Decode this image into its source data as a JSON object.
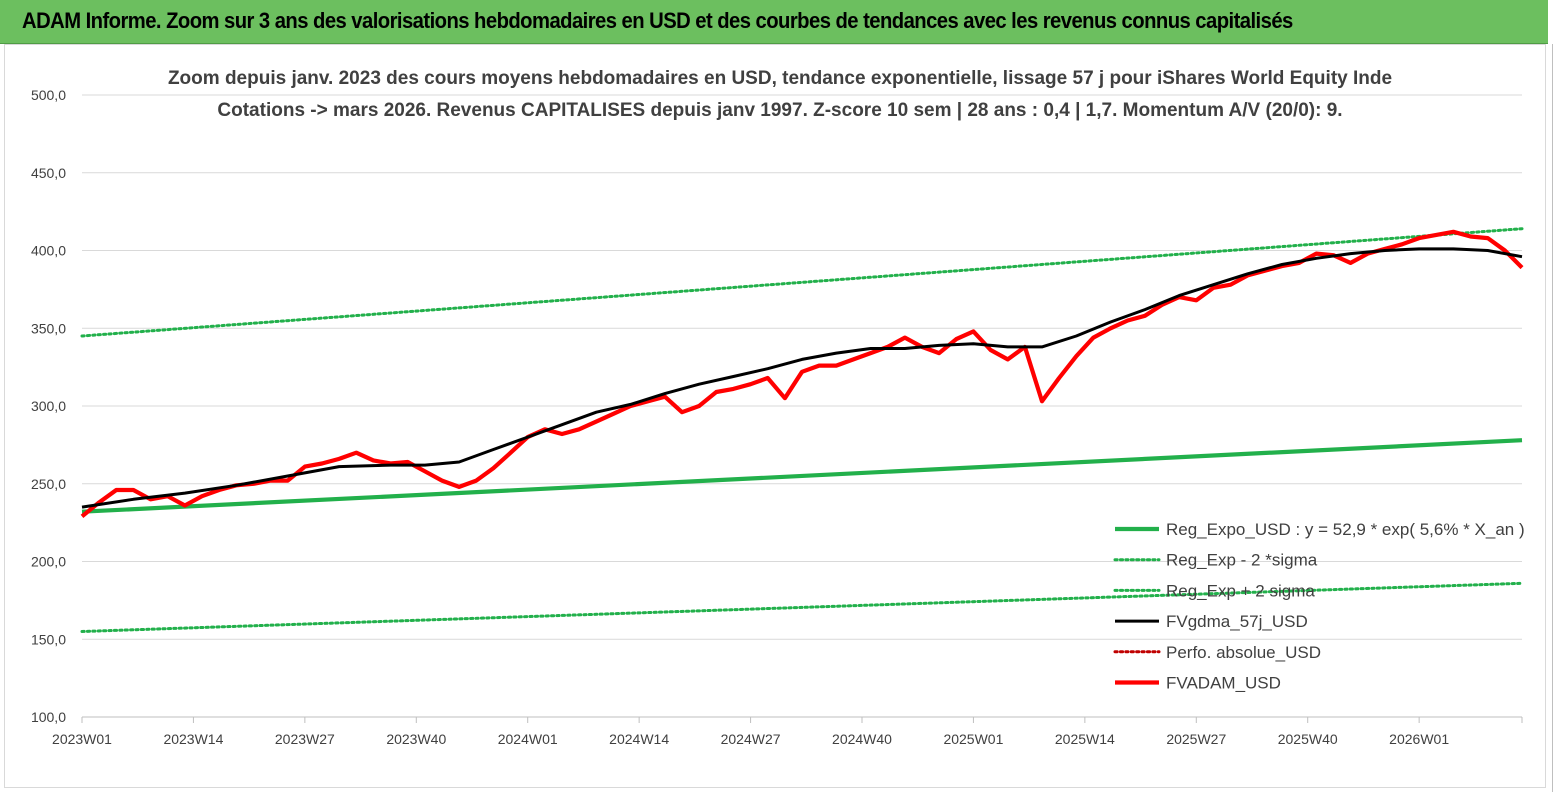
{
  "header": {
    "title": "ADAM Informe. Zoom sur 3 ans des valorisations hebdomadaires en USD et des courbes de tendances avec les revenus connus capitalisés"
  },
  "chart_data": {
    "type": "line",
    "title": "Zoom depuis janv. 2023 des cours moyens hebdomadaires en USD, tendance exponentielle, lissage 57 j pour iShares World Equity Inde",
    "subtitle": "Cotations -> mars 2026. Revenus CAPITALISES depuis janv 1997. Z-score 10 sem | 28 ans : 0,4 | 1,7. Momentum A/V (20/0): 9.",
    "xlabel": "",
    "ylabel": "",
    "ylim": [
      100,
      500
    ],
    "yticks": [
      100,
      150,
      200,
      250,
      300,
      350,
      400,
      450,
      500
    ],
    "ytick_labels": [
      "100,0",
      "150,0",
      "200,0",
      "250,0",
      "300,0",
      "350,0",
      "400,0",
      "450,0",
      "500,0"
    ],
    "x_range": [
      0,
      168
    ],
    "xticks": [
      0,
      13,
      26,
      39,
      52,
      65,
      78,
      91,
      104,
      117,
      130,
      143,
      156
    ],
    "xtick_labels": [
      "2023W01",
      "2023W14",
      "2023W27",
      "2023W40",
      "2024W01",
      "2024W14",
      "2024W27",
      "2024W40",
      "2025W01",
      "2025W14",
      "2025W27",
      "2025W40",
      "2026W01"
    ],
    "grid": "horizontal",
    "legend_position": "bottom-right",
    "series": [
      {
        "name": "Reg_Expo_USD : y = 52,9 * exp( 5,6% *  X_an )",
        "style": "solid-thick",
        "color": "#22b04b",
        "x": [
          0,
          168
        ],
        "values": [
          232,
          278
        ]
      },
      {
        "name": "Reg_Exp - 2 *sigma",
        "style": "dotted",
        "color": "#22b04b",
        "x": [
          0,
          168
        ],
        "values": [
          345,
          414
        ]
      },
      {
        "name": "Reg_Exp + 2 sigma",
        "style": "dotted",
        "color": "#22b04b",
        "x": [
          0,
          168
        ],
        "values": [
          155,
          186
        ]
      },
      {
        "name": "FVgdma_57j_USD",
        "style": "solid",
        "color": "#000000",
        "x": [
          0,
          6,
          12,
          18,
          24,
          30,
          36,
          40,
          44,
          48,
          52,
          56,
          60,
          64,
          68,
          72,
          76,
          80,
          84,
          88,
          92,
          96,
          100,
          104,
          108,
          112,
          116,
          120,
          124,
          128,
          132,
          136,
          140,
          144,
          148,
          152,
          156,
          160,
          164,
          168
        ],
        "values": [
          235,
          240,
          244,
          249,
          255,
          261,
          262,
          262,
          264,
          272,
          280,
          288,
          296,
          301,
          308,
          314,
          319,
          324,
          330,
          334,
          337,
          337,
          339,
          340,
          338,
          338,
          345,
          354,
          362,
          371,
          378,
          385,
          391,
          395,
          398,
          400,
          401,
          401,
          400,
          396
        ]
      },
      {
        "name": "Perfo. absolue_USD",
        "style": "dotted",
        "color": "#c00000",
        "x": [],
        "values": []
      },
      {
        "name": "FVADAM_USD",
        "style": "solid-thick",
        "color": "#ff0000",
        "x": [
          0,
          2,
          4,
          6,
          8,
          10,
          12,
          14,
          16,
          18,
          20,
          22,
          24,
          26,
          28,
          30,
          32,
          34,
          36,
          38,
          40,
          42,
          44,
          46,
          48,
          50,
          52,
          54,
          56,
          58,
          60,
          62,
          64,
          66,
          68,
          70,
          72,
          74,
          76,
          78,
          80,
          82,
          84,
          86,
          88,
          90,
          92,
          94,
          96,
          98,
          100,
          102,
          104,
          106,
          108,
          110,
          112,
          114,
          116,
          118,
          120,
          122,
          124,
          126,
          128,
          130,
          132,
          134,
          136,
          138,
          140,
          142,
          144,
          146,
          148,
          150,
          152,
          154,
          156,
          158,
          160,
          162,
          164,
          166,
          168
        ],
        "values": [
          229,
          238,
          246,
          246,
          240,
          242,
          236,
          242,
          246,
          249,
          250,
          252,
          252,
          261,
          263,
          266,
          270,
          265,
          263,
          264,
          258,
          252,
          248,
          252,
          260,
          270,
          280,
          285,
          282,
          285,
          290,
          295,
          300,
          303,
          306,
          296,
          300,
          309,
          311,
          314,
          318,
          305,
          322,
          326,
          326,
          330,
          334,
          338,
          344,
          338,
          334,
          343,
          348,
          336,
          330,
          338,
          303,
          318,
          332,
          344,
          350,
          355,
          358,
          365,
          370,
          368,
          376,
          378,
          384,
          387,
          390,
          392,
          398,
          397,
          392,
          398,
          401,
          404,
          408,
          410,
          412,
          409,
          408,
          400,
          389
        ]
      }
    ]
  }
}
